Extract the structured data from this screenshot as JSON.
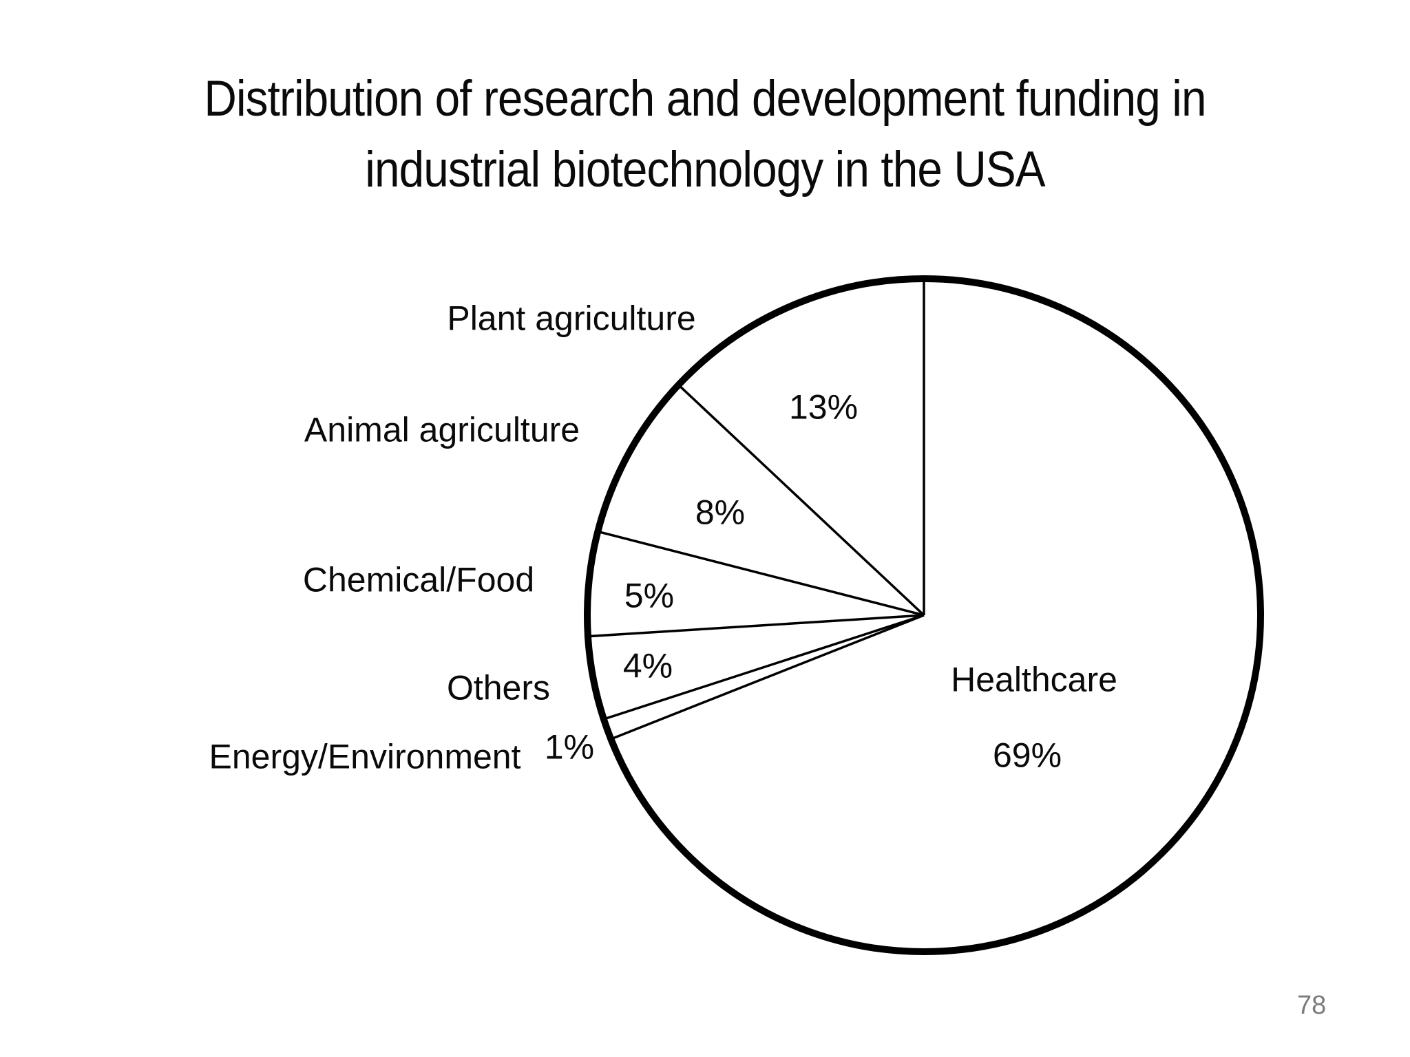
{
  "slide": {
    "title_line1": "Distribution of research and development funding in",
    "title_line2": "industrial biotechnology in the USA",
    "page_number": "78"
  },
  "chart_data": {
    "type": "pie",
    "title": "Distribution of research and development funding in industrial biotechnology in the USA",
    "categories": [
      "Plant agriculture",
      "Animal agriculture",
      "Chemical/Food",
      "Others",
      "Energy/Environment",
      "Healthcare"
    ],
    "values": [
      13,
      8,
      5,
      4,
      1,
      69
    ],
    "value_labels": [
      "13%",
      "8%",
      "5%",
      "4%",
      "1%",
      "69%"
    ],
    "unit": "%",
    "start_angle": "top",
    "direction": "counterclockwise",
    "legend_position": "none",
    "style": "outline-only pie, white fill, black strokes",
    "colors": {
      "stroke": "#000000",
      "fill": "#ffffff",
      "page_number": "#7b7b7b"
    }
  }
}
